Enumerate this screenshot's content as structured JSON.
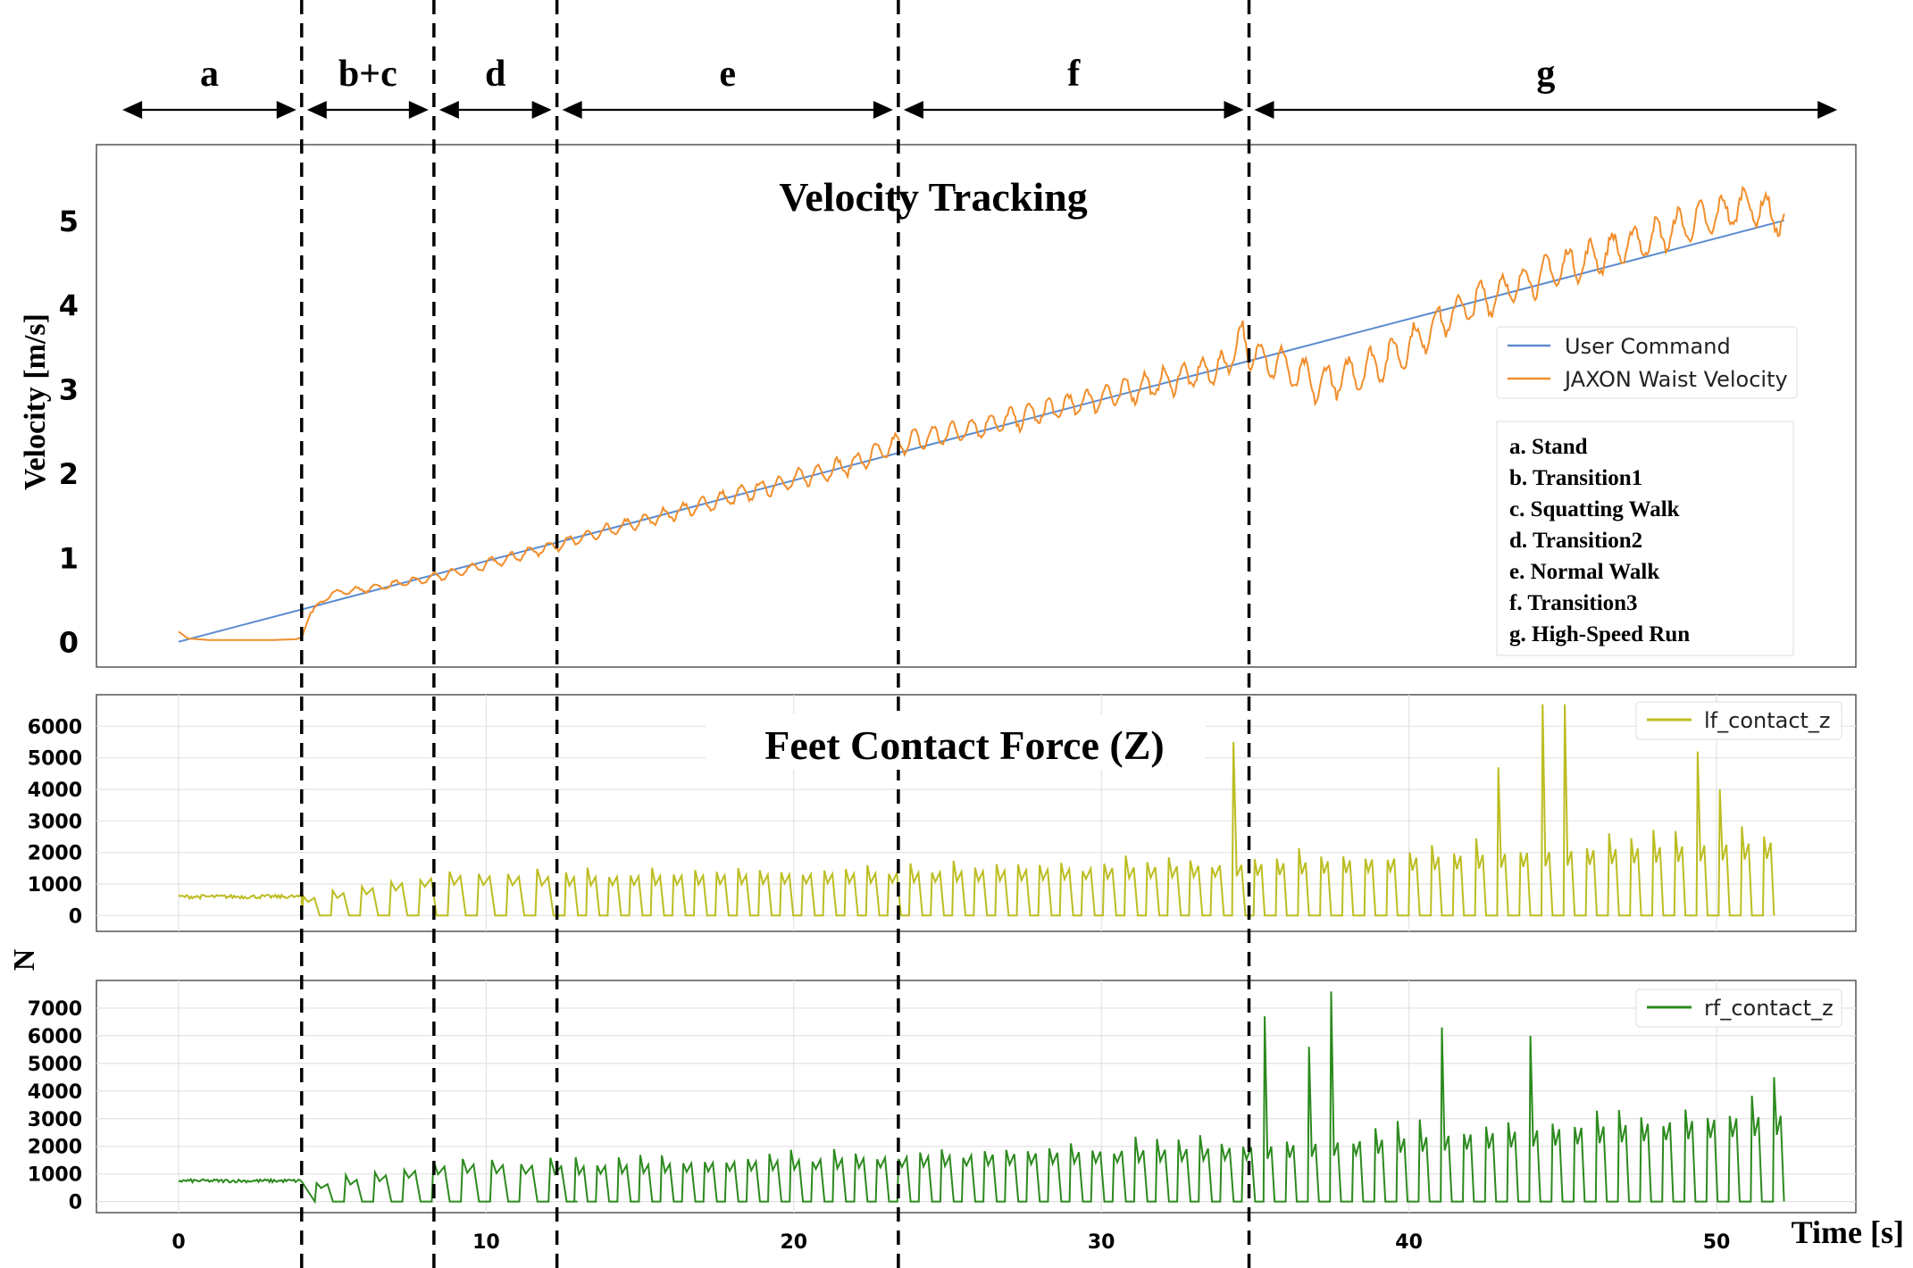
{
  "figure": {
    "phase_labels": [
      "a",
      "b+c",
      "d",
      "e",
      "f",
      "g"
    ],
    "phase_boundaries_s": [
      4.0,
      8.3,
      12.3,
      23.4,
      34.8
    ],
    "time_range_s": [
      0,
      52.3
    ],
    "xaxis_label": "Time [s]",
    "shared_ylabel_force": "N"
  },
  "chart_data": [
    {
      "type": "line",
      "title": "Velocity Tracking",
      "ylabel": "Velocity [m/s]",
      "xlabel": "",
      "xlim": [
        -2.4,
        55.0
      ],
      "ylim": [
        -0.3,
        5.9
      ],
      "yticks": [
        0,
        1,
        2,
        3,
        4,
        5
      ],
      "grid": false,
      "legend_position": "right",
      "series": [
        {
          "name": "User Command",
          "color": "#5b8bd0",
          "x": [
            0,
            52.2
          ],
          "y": [
            0.0,
            5.0
          ]
        },
        {
          "name": "JAXON Waist Velocity",
          "color": "#f28e2b",
          "x": [
            0,
            0.3,
            1,
            2,
            3,
            3.8,
            4.0,
            4.3,
            5,
            6,
            7,
            8,
            9,
            10,
            12,
            14,
            16,
            18,
            20,
            22,
            23.4,
            26,
            28,
            30,
            32,
            34,
            34.6,
            34.8,
            35.5,
            36,
            37,
            38,
            39,
            40,
            41,
            42,
            43,
            44,
            45,
            46,
            47,
            48,
            49,
            50,
            51,
            52.2
          ],
          "y": [
            0.12,
            0.04,
            0.02,
            0.02,
            0.02,
            0.03,
            0.05,
            0.35,
            0.58,
            0.62,
            0.68,
            0.74,
            0.82,
            0.92,
            1.12,
            1.32,
            1.52,
            1.72,
            1.92,
            2.12,
            2.35,
            2.55,
            2.72,
            2.9,
            3.08,
            3.26,
            3.65,
            3.4,
            3.35,
            3.25,
            3.05,
            3.15,
            3.3,
            3.5,
            3.8,
            4.0,
            4.15,
            4.3,
            4.45,
            4.55,
            4.7,
            4.8,
            4.95,
            5.05,
            5.2,
            5.0
          ]
        }
      ],
      "annotation_lines": [
        "a. Stand",
        "b. Transition1",
        "c. Squatting Walk",
        "d. Transition2",
        "e. Normal Walk",
        "f. Transition3",
        "g. High-Speed Run"
      ]
    },
    {
      "type": "line",
      "title": "Feet Contact Force (Z)",
      "ylabel": "N",
      "xlabel": "",
      "xlim": [
        -2.4,
        55.0
      ],
      "ylim": [
        -500,
        7000
      ],
      "yticks": [
        0,
        1000,
        2000,
        3000,
        4000,
        5000,
        6000
      ],
      "grid": true,
      "legend_position": "top-right",
      "series": [
        {
          "name": "lf_contact_z",
          "color": "#bcbd22",
          "x": [
            0,
            4,
            8.3,
            12.3,
            23.4,
            34.8,
            52.2
          ],
          "y": [
            600,
            620,
            1400,
            1350,
            1500,
            1800,
            2600
          ],
          "peaks": [
            {
              "x": 34.0,
              "y": 5500
            },
            {
              "x": 44.7,
              "y": 6700
            },
            {
              "x": 49.3,
              "y": 5200
            },
            {
              "x": 50.0,
              "y": 4000
            },
            {
              "x": 50.3,
              "y": 5100
            },
            {
              "x": 43.1,
              "y": 4700
            }
          ]
        }
      ]
    },
    {
      "type": "line",
      "title": "",
      "ylabel": "N",
      "xlabel": "Time [s]",
      "xlim": [
        -2.4,
        55.0
      ],
      "ylim": [
        -400,
        8000
      ],
      "yticks": [
        0,
        1000,
        2000,
        3000,
        4000,
        5000,
        6000,
        7000
      ],
      "xticks": [
        0,
        10,
        20,
        30,
        40,
        50
      ],
      "grid": true,
      "legend_position": "top-right",
      "series": [
        {
          "name": "rf_contact_z",
          "color": "#2c8a1e",
          "x": [
            0,
            4,
            8.3,
            12.3,
            23.4,
            34.8,
            52.2
          ],
          "y": [
            750,
            700,
            1500,
            1400,
            1800,
            2200,
            3500
          ],
          "peaks": [
            {
              "x": 35.3,
              "y": 6700
            },
            {
              "x": 37.3,
              "y": 7600
            },
            {
              "x": 41.2,
              "y": 6300
            },
            {
              "x": 44.2,
              "y": 6000
            },
            {
              "x": 36.5,
              "y": 5600
            },
            {
              "x": 51.6,
              "y": 4500
            }
          ]
        }
      ]
    }
  ]
}
